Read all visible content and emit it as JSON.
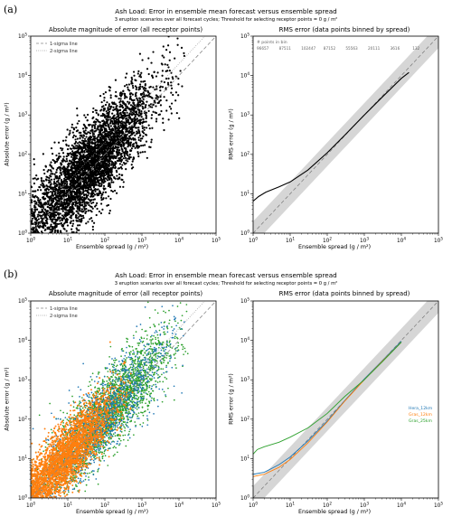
{
  "labels": {
    "a": "(a)",
    "b": "(b)"
  },
  "suptitle": "Ash Load: Error in ensemble mean forecast versus ensemble spread",
  "subtitle": "3 eruption scenarios over all forecast cycles; Threshold for selecting receptor points = 0 g / m²",
  "titles": {
    "scatter": "Absolute magnitude of error (all receptor points)",
    "rms": "RMS error (data points binned by spread)"
  },
  "axis_labels": {
    "x": "Ensemble spread (g / m²)",
    "y_scatter": "Absolute error (g / m²)",
    "y_rms": "RMS error (g / m²)"
  },
  "legend": {
    "one_sigma": "1-sigma line",
    "two_sigma": "2-sigma line"
  },
  "bin_counts_label": "# points in bin",
  "colors": {
    "all": "#000000",
    "Hera_12km": "#1f77b4",
    "Gras_12km": "#ff7f0e",
    "Gras_25km": "#2ca02c"
  },
  "chart_data": [
    {
      "type": "scatter",
      "panel": "a",
      "title": "Absolute magnitude of error (all receptor points)",
      "xlabel": "Ensemble spread (g / m²)",
      "ylabel": "Absolute error (g / m²)",
      "xlim": [
        1,
        100000
      ],
      "ylim": [
        1,
        100000
      ],
      "xscale": "log",
      "yscale": "log",
      "reference_lines": [
        "1-sigma line",
        "2-sigma line"
      ],
      "legend_placement": "top-left"
    },
    {
      "type": "line",
      "panel": "a",
      "title": "RMS error (data points binned by spread)",
      "xlabel": "Ensemble spread (g / m²)",
      "ylabel": "RMS error (g / m²)",
      "xlim": [
        1,
        100000
      ],
      "ylim": [
        1,
        100000
      ],
      "xscale": "log",
      "yscale": "log",
      "bin_counts": [
        "96657",
        "87511",
        "102447",
        "87152",
        "55563",
        "20111",
        "3616",
        "132"
      ],
      "series": [
        {
          "name": "",
          "x": [
            1,
            1.4,
            2.2,
            5,
            10,
            30,
            100,
            300,
            1000,
            3000,
            10000,
            16000
          ],
          "y": [
            6.5,
            8.5,
            11,
            15,
            20,
            40,
            110,
            310,
            1000,
            2800,
            8500,
            12000
          ]
        }
      ]
    },
    {
      "type": "scatter",
      "panel": "b",
      "title": "Absolute magnitude of error (all receptor points)",
      "xlabel": "Ensemble spread (g / m²)",
      "ylabel": "Absolute error (g / m²)",
      "xlim": [
        1,
        100000
      ],
      "ylim": [
        1,
        100000
      ],
      "xscale": "log",
      "yscale": "log",
      "reference_lines": [
        "1-sigma line",
        "2-sigma line"
      ],
      "legend_placement": "top-left"
    },
    {
      "type": "line",
      "panel": "b",
      "title": "RMS error (data points binned by spread)",
      "xlabel": "Ensemble spread (g / m²)",
      "ylabel": "RMS error (g / m²)",
      "xlim": [
        1,
        100000
      ],
      "ylim": [
        1,
        100000
      ],
      "xscale": "log",
      "yscale": "log",
      "legend_placement": "right",
      "series": [
        {
          "name": "Hera_12km",
          "x": [
            1,
            2,
            5,
            10,
            30,
            100,
            300,
            1000,
            3000,
            10000
          ],
          "y": [
            4,
            4.5,
            7,
            11,
            28,
            90,
            300,
            1050,
            3000,
            9500
          ]
        },
        {
          "name": "Gras_12km",
          "x": [
            1,
            2,
            5,
            10,
            30,
            100,
            300,
            1000,
            3000,
            10000
          ],
          "y": [
            3.5,
            4,
            6,
            9.5,
            25,
            85,
            290,
            1000,
            2900,
            9000
          ]
        },
        {
          "name": "Gras_25km",
          "x": [
            1,
            1.3,
            2,
            5,
            10,
            30,
            100,
            300,
            1000,
            3000,
            10000
          ],
          "y": [
            13,
            17,
            20,
            26,
            35,
            60,
            140,
            380,
            1000,
            2800,
            9000
          ]
        }
      ]
    }
  ]
}
